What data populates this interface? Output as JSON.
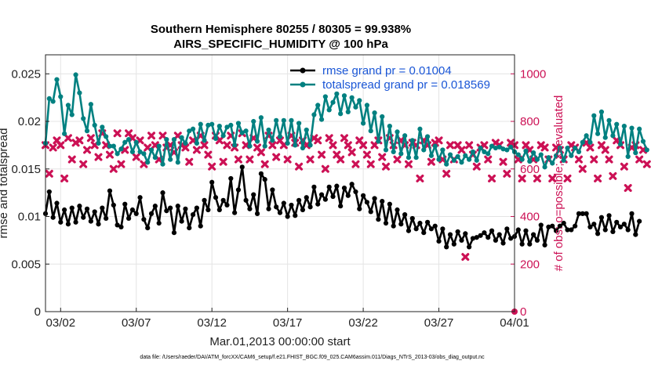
{
  "chart_data": {
    "type": "line",
    "title": "Southern Hemisphere 80255 / 80305 = 99.938%",
    "subtitle": "AIRS_SPECIFIC_HUMIDITY @ 100 hPa",
    "xlabel": "Mar.01,2013 00:00:00 start",
    "ylabel": "rmse and totalspread",
    "y2label": "# of obs: o=possible; ×=evaluated",
    "footnote": "data file: /Users/raeder/DAI/ATM_forcXX/CAM6_setup/f.e21.FHIST_BGC.f09_025.CAM6assim.011/Diags_NTrS_2013-03/obs_diag_output.nc",
    "xlim": [
      0,
      31
    ],
    "ylim": [
      0,
      0.027
    ],
    "y2lim": [
      0,
      1080
    ],
    "xticks": [
      1,
      6,
      11,
      16,
      21,
      26,
      31
    ],
    "xtick_labels": [
      "03/02",
      "03/07",
      "03/12",
      "03/17",
      "03/22",
      "03/27",
      "04/01"
    ],
    "yticks": [
      0,
      0.005,
      0.01,
      0.015,
      0.02,
      0.025
    ],
    "ytick_labels": [
      "0",
      "0.005",
      "0.01",
      "0.015",
      "0.02",
      "0.025"
    ],
    "y2ticks": [
      0,
      200,
      400,
      600,
      800,
      1000
    ],
    "y2tick_labels": [
      "0",
      "200",
      "400",
      "600",
      "800",
      "1000"
    ],
    "grid": true,
    "legend_position": "top-right",
    "series": [
      {
        "name": "rmse grand pr = 0.01004",
        "color": "#000000",
        "axis": "left",
        "x0": 0,
        "dx": 0.25,
        "values": [
          0.0103,
          0.0126,
          0.0099,
          0.0114,
          0.0094,
          0.0107,
          0.0092,
          0.0109,
          0.0094,
          0.0111,
          0.0099,
          0.0108,
          0.0095,
          0.0105,
          0.0092,
          0.0109,
          0.0098,
          0.0127,
          0.0112,
          0.0091,
          0.0089,
          0.0113,
          0.0098,
          0.0107,
          0.0103,
          0.012,
          0.0097,
          0.0088,
          0.0103,
          0.0111,
          0.0093,
          0.0125,
          0.0106,
          0.0109,
          0.0083,
          0.0111,
          0.0095,
          0.0108,
          0.0088,
          0.0102,
          0.0109,
          0.009,
          0.0117,
          0.0107,
          0.0136,
          0.012,
          0.0107,
          0.0117,
          0.0112,
          0.014,
          0.0104,
          0.0128,
          0.0152,
          0.0117,
          0.0108,
          0.0123,
          0.0103,
          0.0145,
          0.0139,
          0.0108,
          0.0128,
          0.011,
          0.0104,
          0.0114,
          0.01,
          0.0112,
          0.0101,
          0.0117,
          0.0107,
          0.012,
          0.011,
          0.0131,
          0.0113,
          0.0123,
          0.0118,
          0.0131,
          0.0121,
          0.0132,
          0.0111,
          0.013,
          0.0122,
          0.0134,
          0.0126,
          0.0108,
          0.0122,
          0.0115,
          0.0105,
          0.0119,
          0.0097,
          0.0116,
          0.0093,
          0.0113,
          0.009,
          0.0107,
          0.0092,
          0.0102,
          0.0085,
          0.0098,
          0.0087,
          0.0093,
          0.0083,
          0.0094,
          0.0087,
          0.009,
          0.0074,
          0.0087,
          0.0068,
          0.0081,
          0.0071,
          0.0084,
          0.0075,
          0.0082,
          0.0068,
          0.0077,
          0.0078,
          0.008,
          0.0083,
          0.0078,
          0.0085,
          0.0075,
          0.0081,
          0.0072,
          0.0087,
          0.0077,
          0.0079,
          0.0086,
          0.0071,
          0.0085,
          0.0071,
          0.0081,
          0.0075,
          0.0091,
          0.007,
          0.0089,
          0.009,
          0.0085,
          0.009,
          0.0093,
          0.0086,
          0.0086,
          0.009,
          0.0103,
          0.0103,
          0.0103,
          0.0089,
          0.0092,
          0.0082,
          0.0099,
          0.0086,
          0.0101,
          0.0084,
          0.0094,
          0.0089,
          0.0092,
          0.0086,
          0.0103,
          0.0081,
          0.0095
        ]
      },
      {
        "name": "totalspread grand pr = 0.018569",
        "color": "#008080",
        "axis": "left",
        "x0": 0,
        "dx": 0.25,
        "values": [
          0.0177,
          0.0224,
          0.0221,
          0.0244,
          0.0226,
          0.0187,
          0.0217,
          0.0207,
          0.0249,
          0.023,
          0.0203,
          0.019,
          0.0218,
          0.0196,
          0.0177,
          0.0194,
          0.0184,
          0.0174,
          0.0174,
          0.0166,
          0.0171,
          0.0178,
          0.0181,
          0.0168,
          0.0178,
          0.0168,
          0.0166,
          0.0157,
          0.017,
          0.0162,
          0.0174,
          0.0155,
          0.0181,
          0.016,
          0.0181,
          0.0157,
          0.0183,
          0.0177,
          0.019,
          0.0192,
          0.0177,
          0.0197,
          0.018,
          0.0196,
          0.0197,
          0.0182,
          0.0195,
          0.0185,
          0.0194,
          0.0196,
          0.0175,
          0.0198,
          0.0188,
          0.019,
          0.0174,
          0.02,
          0.0179,
          0.0204,
          0.0174,
          0.0191,
          0.018,
          0.0201,
          0.0184,
          0.0201,
          0.0177,
          0.0201,
          0.0175,
          0.0198,
          0.0172,
          0.0191,
          0.0175,
          0.0207,
          0.0217,
          0.0202,
          0.0226,
          0.0212,
          0.022,
          0.0229,
          0.0208,
          0.0227,
          0.021,
          0.0225,
          0.0215,
          0.0222,
          0.0198,
          0.0217,
          0.019,
          0.0209,
          0.0179,
          0.0205,
          0.017,
          0.0195,
          0.0168,
          0.0189,
          0.0166,
          0.0185,
          0.0162,
          0.018,
          0.0162,
          0.0192,
          0.017,
          0.0184,
          0.0164,
          0.0174,
          0.016,
          0.017,
          0.0155,
          0.0165,
          0.0159,
          0.0163,
          0.0157,
          0.0164,
          0.016,
          0.0168,
          0.0159,
          0.0172,
          0.0168,
          0.0166,
          0.0174,
          0.0172,
          0.0173,
          0.0171,
          0.017,
          0.0173,
          0.0168,
          0.0165,
          0.016,
          0.0169,
          0.0158,
          0.0167,
          0.016,
          0.0165,
          0.0152,
          0.0162,
          0.0156,
          0.0164,
          0.0172,
          0.0159,
          0.0172,
          0.0164,
          0.0172,
          0.0168,
          0.0178,
          0.0185,
          0.0178,
          0.0206,
          0.0187,
          0.021,
          0.0183,
          0.0201,
          0.0185,
          0.0197,
          0.0176,
          0.0195,
          0.0163,
          0.0193,
          0.0167,
          0.0192,
          0.0179,
          0.017
        ]
      },
      {
        "name": "# of obs evaluated",
        "color": "#cc1155",
        "axis": "right",
        "marker": "x",
        "x0": 0,
        "dx": 0.25,
        "values": [
          700,
          580,
          690,
          720,
          700,
          560,
          730,
          640,
          710,
          720,
          620,
          680,
          730,
          700,
          650,
          750,
          700,
          660,
          600,
          750,
          620,
          680,
          750,
          730,
          650,
          720,
          620,
          690,
          740,
          700,
          640,
          740,
          690,
          700,
          670,
          740,
          700,
          690,
          630,
          720,
          680,
          740,
          700,
          660,
          610,
          740,
          720,
          630,
          700,
          740,
          690,
          640,
          750,
          700,
          640,
          730,
          690,
          670,
          620,
          740,
          700,
          650,
          720,
          700,
          640,
          740,
          710,
          610,
          720,
          700,
          640,
          730,
          720,
          660,
          600,
          730,
          700,
          660,
          640,
          730,
          700,
          670,
          620,
          720,
          700,
          660,
          620,
          700,
          720,
          650,
          610,
          730,
          700,
          640,
          720,
          700,
          620,
          710,
          700,
          560,
          720,
          700,
          630,
          710,
          720,
          640,
          580,
          700,
          640,
          700,
          680,
          230,
          700,
          660,
          610,
          690,
          700,
          640,
          560,
          710,
          700,
          630,
          580,
          710,
          700,
          640,
          560,
          700,
          680,
          640,
          560,
          700,
          690,
          640,
          560,
          690,
          680,
          640,
          560,
          700,
          690,
          640,
          600,
          710,
          690,
          640,
          560,
          700,
          680,
          640,
          570,
          720,
          700,
          610,
          520,
          690,
          700,
          640,
          680,
          620
        ]
      },
      {
        "name": "# of obs possible",
        "color": "#cc1155",
        "axis": "right",
        "marker": "o",
        "points": [
          [
            31,
            0
          ]
        ]
      }
    ]
  }
}
